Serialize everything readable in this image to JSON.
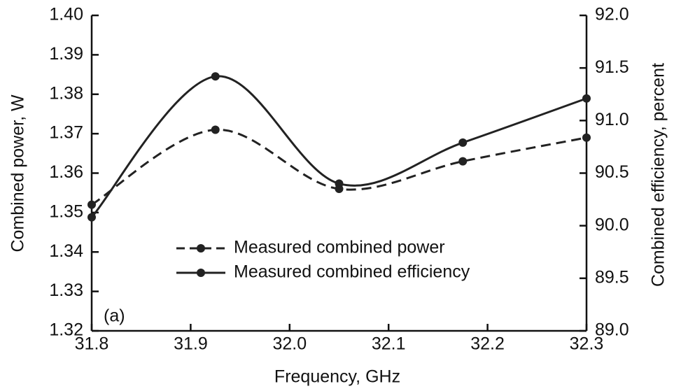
{
  "chart_data": {
    "type": "line",
    "xlabel": "Frequency, GHz",
    "ylabel": "Combined power, W",
    "y2label": "Combined efficiency, percent",
    "annotation": "(a)",
    "x": [
      31.8,
      31.925,
      32.05,
      32.175,
      32.3
    ],
    "series": [
      {
        "name": "Measured combined power",
        "color": "#222222",
        "line_style": "dashed",
        "values": [
          1.352,
          1.371,
          1.356,
          1.363,
          1.369
        ]
      },
      {
        "name": "Measured combined efficiency",
        "color": "#222222",
        "line_style": "solid",
        "axis": "y2",
        "values": [
          90.08,
          91.42,
          90.4,
          90.79,
          91.21
        ]
      }
    ],
    "xlim": [
      31.8,
      32.3
    ],
    "xticks": [
      31.8,
      31.9,
      {
        "value": 32,
        "label": "32.0"
      },
      32.1,
      32.2,
      32.3
    ],
    "ylim": [
      1.32,
      1.4
    ],
    "yticks": [
      1.32,
      1.33,
      1.34,
      1.35,
      1.36,
      1.37,
      1.38,
      1.39,
      {
        "value": 1.4,
        "label": "1.40"
      }
    ],
    "y2lim": [
      89,
      92
    ],
    "y2ticks": [
      {
        "value": 89,
        "label": "89.0"
      },
      89.5,
      {
        "value": 90,
        "label": "90.0"
      },
      90.5,
      {
        "value": 91,
        "label": "91.0"
      },
      91.5,
      {
        "value": 92,
        "label": "92.0"
      }
    ]
  }
}
